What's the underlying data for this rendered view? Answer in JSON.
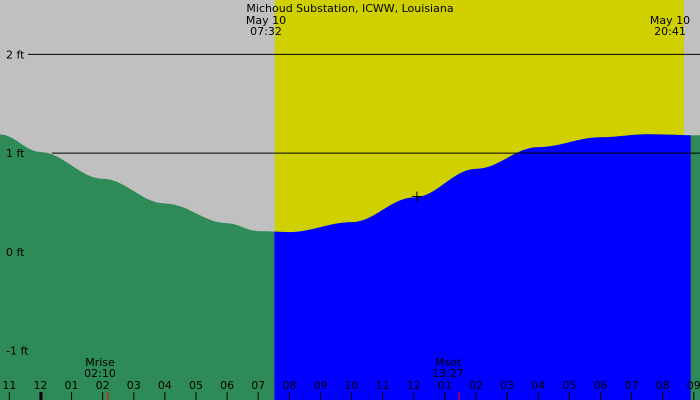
{
  "chart_data": {
    "type": "area",
    "title": "Michoud Substation, ICWW, Louisiana",
    "sunrise": {
      "date": "May 10",
      "time": "07:32"
    },
    "sunset": {
      "date": "May 10",
      "time": "20:41"
    },
    "moonrise": {
      "label": "Mrise",
      "time": "02:10"
    },
    "moonset": {
      "label": "Mset",
      "time": "13:27"
    },
    "y_ticks": [
      {
        "label": "2 ft",
        "value": 2
      },
      {
        "label": "1 ft",
        "value": 1
      },
      {
        "label": "0 ft",
        "value": 0
      },
      {
        "label": "-1 ft",
        "value": -1
      }
    ],
    "hour_ticks": [
      "11",
      "12",
      "01",
      "02",
      "03",
      "04",
      "05",
      "06",
      "07",
      "08",
      "09",
      "10",
      "11",
      "12",
      "01",
      "02",
      "03",
      "04",
      "05",
      "06",
      "07",
      "08",
      "09"
    ],
    "time_range_hours": [
      -1.3,
      21.2
    ],
    "ylim": [
      -1.5,
      2.55
    ],
    "tide_series": {
      "hours": [
        -1.3,
        0,
        2,
        4,
        6,
        7,
        8,
        10,
        12,
        14,
        16,
        18,
        19.5,
        21.2
      ],
      "feet": [
        1.19,
        1.01,
        0.74,
        0.49,
        0.29,
        0.21,
        0.2,
        0.3,
        0.55,
        0.84,
        1.06,
        1.16,
        1.19,
        1.18
      ]
    },
    "current_point": {
      "hour": 12.1,
      "feet": 0.56
    }
  },
  "colors": {
    "background": "#c0c0c0",
    "daylight": "#d0d000",
    "tide_night": "#2e8b57",
    "tide_day": "#0000ff",
    "moon_tick": "#ff0000"
  }
}
